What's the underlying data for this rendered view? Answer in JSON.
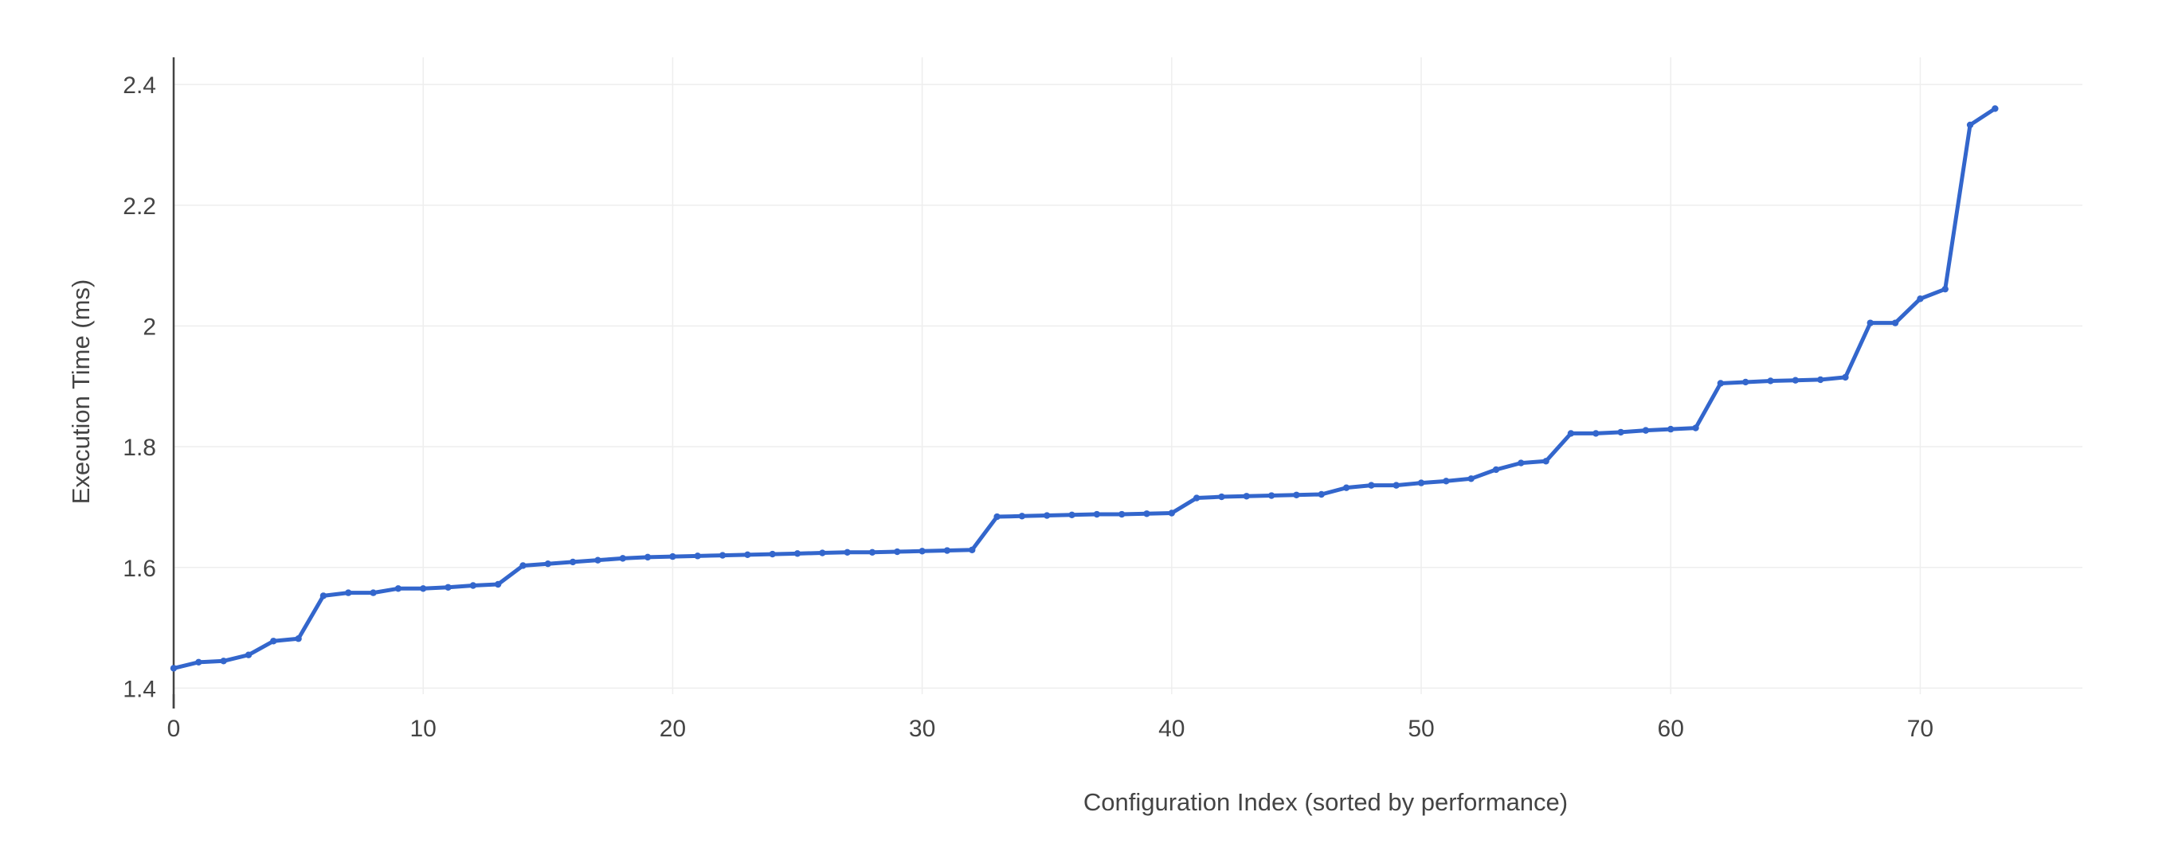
{
  "chart_data": {
    "type": "line",
    "title": "",
    "xlabel": "Configuration Index (sorted by performance)",
    "ylabel": "Execution Time (ms)",
    "xlim": [
      0,
      76.5
    ],
    "ylim": [
      1.39,
      2.445
    ],
    "x_ticks": [
      {
        "value": 0,
        "label": "0"
      },
      {
        "value": 10,
        "label": "10"
      },
      {
        "value": 20,
        "label": "20"
      },
      {
        "value": 30,
        "label": "30"
      },
      {
        "value": 40,
        "label": "40"
      },
      {
        "value": 50,
        "label": "50"
      },
      {
        "value": 60,
        "label": "60"
      },
      {
        "value": 70,
        "label": "70"
      }
    ],
    "y_ticks": [
      {
        "value": 1.4,
        "label": "1.4"
      },
      {
        "value": 1.6,
        "label": "1.6"
      },
      {
        "value": 1.8,
        "label": "1.8"
      },
      {
        "value": 2.0,
        "label": "2"
      },
      {
        "value": 2.2,
        "label": "2.2"
      },
      {
        "value": 2.4,
        "label": "2.4"
      }
    ],
    "grid": true,
    "line_color": "#3366cc",
    "grid_color": "#eeeeee",
    "axis_color": "#444444",
    "series": [
      {
        "x": [
          0,
          1,
          2,
          3,
          4,
          5,
          6,
          7,
          8,
          9,
          10,
          11,
          12,
          13,
          14,
          15,
          16,
          17,
          18,
          19,
          20,
          21,
          22,
          23,
          24,
          25,
          26,
          27,
          28,
          29,
          30,
          31,
          32,
          33,
          34,
          35,
          36,
          37,
          38,
          39,
          40,
          41,
          42,
          43,
          44,
          45,
          46,
          47,
          48,
          49,
          50,
          51,
          52,
          53,
          54,
          55,
          56,
          57,
          58,
          59,
          60,
          61,
          62,
          63,
          64,
          65,
          66,
          67,
          68,
          69,
          70,
          71,
          72,
          73
        ],
        "values": [
          1.433,
          1.443,
          1.445,
          1.455,
          1.478,
          1.482,
          1.553,
          1.558,
          1.558,
          1.565,
          1.565,
          1.567,
          1.57,
          1.572,
          1.603,
          1.606,
          1.609,
          1.612,
          1.615,
          1.617,
          1.618,
          1.619,
          1.62,
          1.621,
          1.622,
          1.623,
          1.624,
          1.625,
          1.625,
          1.626,
          1.627,
          1.628,
          1.629,
          1.684,
          1.685,
          1.686,
          1.687,
          1.688,
          1.688,
          1.689,
          1.69,
          1.715,
          1.717,
          1.718,
          1.719,
          1.72,
          1.721,
          1.732,
          1.736,
          1.736,
          1.74,
          1.743,
          1.747,
          1.762,
          1.773,
          1.776,
          1.822,
          1.822,
          1.824,
          1.827,
          1.829,
          1.831,
          1.905,
          1.907,
          1.909,
          1.91,
          1.911,
          1.915,
          2.005,
          2.005,
          2.045,
          2.061,
          2.333,
          2.36
        ]
      }
    ]
  }
}
